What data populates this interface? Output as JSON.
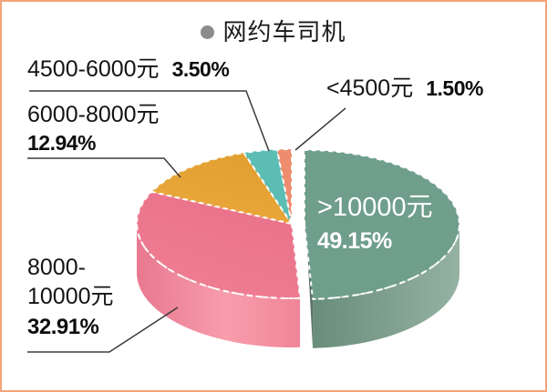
{
  "frame": {
    "border_color": "#F2A477",
    "background": "#FFFFFF"
  },
  "title": {
    "text": "网约车司机",
    "bullet_color": "#8C8C8C"
  },
  "chart_data": {
    "type": "pie",
    "style": "3d-exploded",
    "title": "网约车司机",
    "direction": "clockwise",
    "start_angle_deg": 0,
    "unit": "%",
    "slices": [
      {
        "label": ">10000元",
        "value": 49.15,
        "pct_label": "49.15%",
        "color_top": "#6F9E8C",
        "color_side_from": "#698D7B",
        "color_side_to": "#95B2A2",
        "color_cut": "#5C7265",
        "exploded": true,
        "label_placement": "inside"
      },
      {
        "label": "8000-10000元",
        "value": 32.91,
        "pct_label": "32.91%",
        "color_top": "#EF7E93",
        "color_top2": "#E97189",
        "color_side_from": "#E8788F",
        "color_side_mid": "#F89DAD",
        "color_side_to": "#EF8598",
        "exploded": false,
        "label_placement": "callout"
      },
      {
        "label": "6000-8000元",
        "value": 12.94,
        "pct_label": "12.94%",
        "color_top": "#EBA83D",
        "color_top2": "#E09F2F",
        "exploded": false,
        "label_placement": "callout"
      },
      {
        "label": "4500-6000元",
        "value": 3.5,
        "pct_label": "3.50%",
        "color_top": "#5CBDB5",
        "exploded": false,
        "label_placement": "callout"
      },
      {
        "label": "<4500元",
        "value": 1.5,
        "pct_label": "1.50%",
        "color_top": "#ED8D6E",
        "exploded": false,
        "label_placement": "callout"
      }
    ]
  },
  "labels": {
    "l1": {
      "range": "4500-6000元",
      "pct": "3.50%"
    },
    "l2": {
      "range": "<4500元",
      "pct": "1.50%"
    },
    "l3": {
      "range": "6000-8000元",
      "pct": "12.94%"
    },
    "l4": {
      "line1": "8000-",
      "line2": "10000元",
      "pct": "32.91%"
    },
    "inside": {
      "range": ">10000元",
      "pct": "49.15%"
    }
  }
}
